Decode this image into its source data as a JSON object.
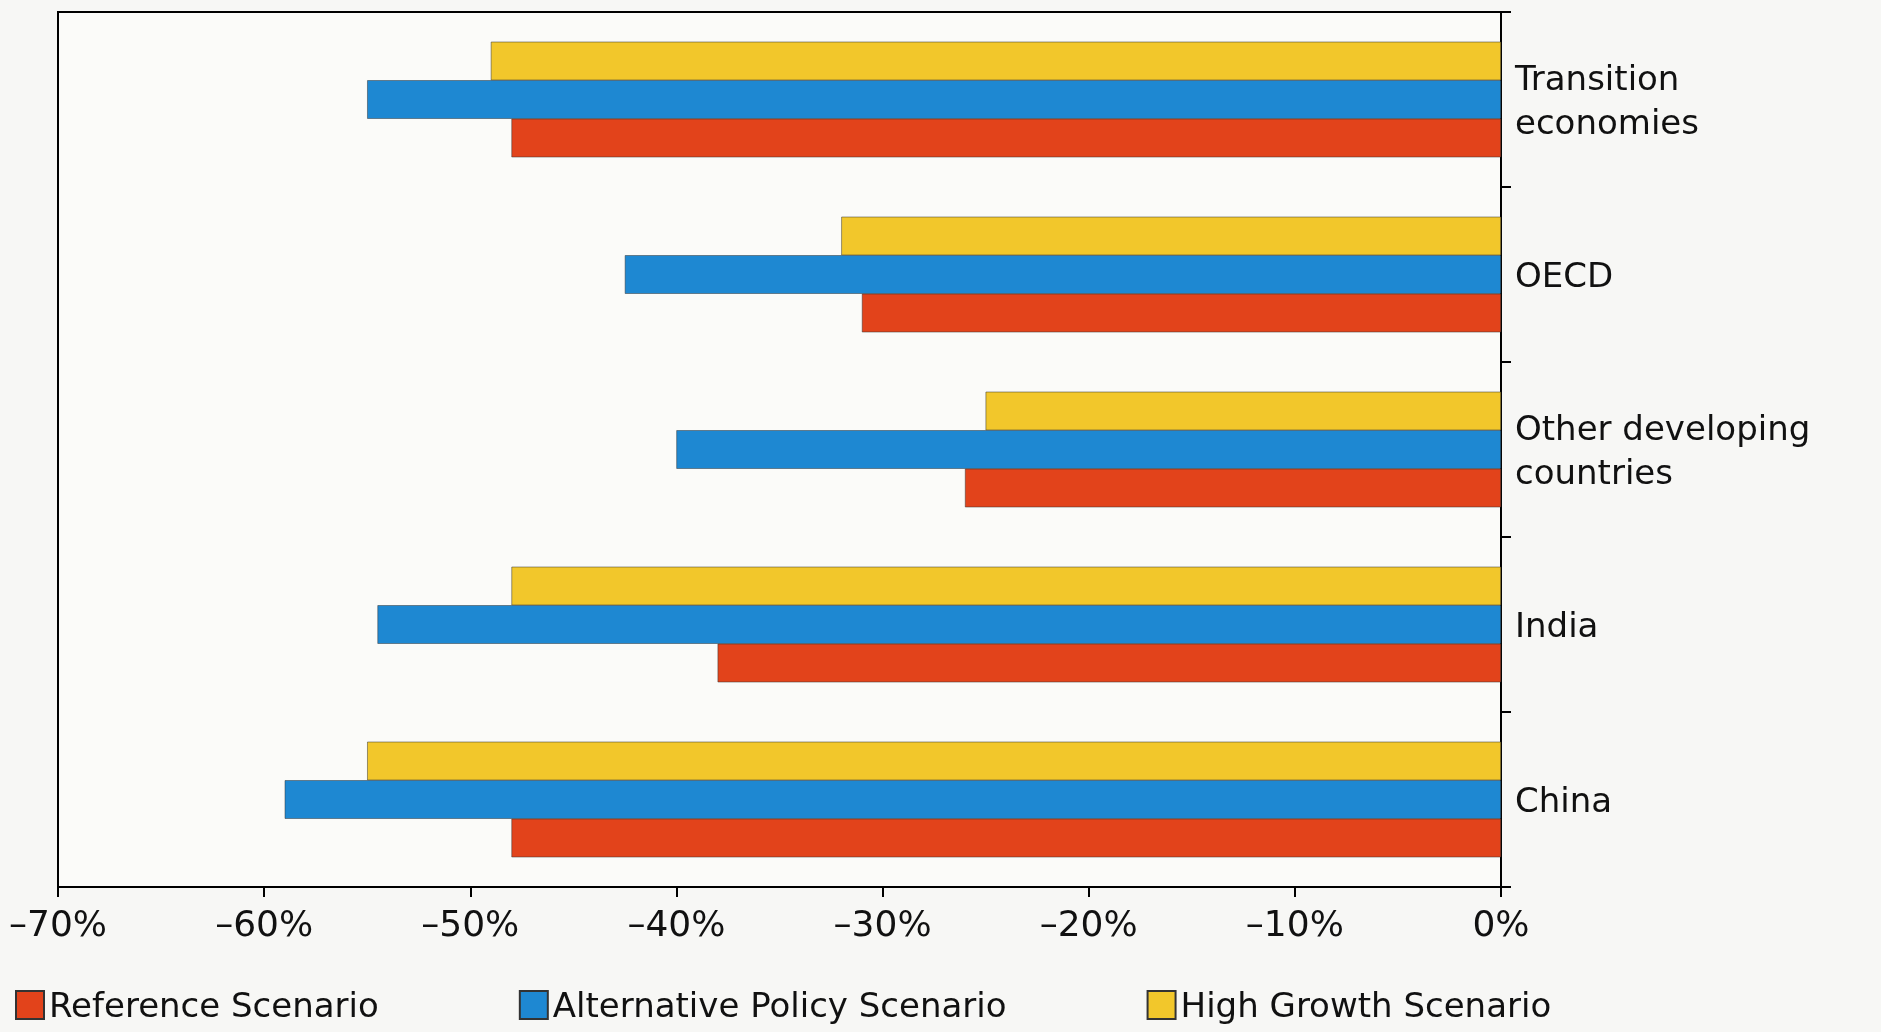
{
  "chart_data": {
    "type": "bar",
    "orientation": "horizontal",
    "categories": [
      "Transition\neconomies",
      "OECD",
      "Other developing\ncountries",
      "India",
      "China"
    ],
    "series": [
      {
        "name": "Reference Scenario",
        "color": "#e2431b",
        "values": [
          -48,
          -31,
          -26,
          -38,
          -48
        ]
      },
      {
        "name": "Alternative Policy Scenario",
        "color": "#1e88d2",
        "values": [
          -55,
          -42.5,
          -40,
          -54.5,
          -59
        ]
      },
      {
        "name": "High Growth Scenario",
        "color": "#f2c72b",
        "values": [
          -49,
          -32,
          -25,
          -48,
          -55
        ]
      }
    ],
    "xlim": [
      -70,
      0
    ],
    "xticks": [
      {
        "value": -70,
        "label": "–70%"
      },
      {
        "value": -60,
        "label": "–60%"
      },
      {
        "value": -50,
        "label": "–50%"
      },
      {
        "value": -40,
        "label": "–40%"
      },
      {
        "value": -30,
        "label": "–30%"
      },
      {
        "value": -20,
        "label": "–20%"
      },
      {
        "value": -10,
        "label": "–10%"
      },
      {
        "value": 0,
        "label": "0%"
      }
    ],
    "grid": false,
    "legend": "bottom"
  }
}
